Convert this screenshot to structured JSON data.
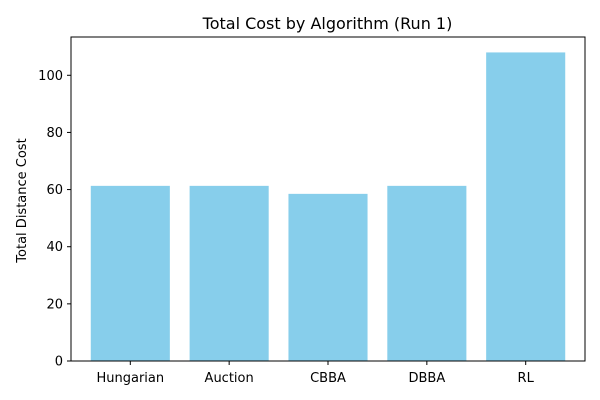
{
  "chart_data": {
    "type": "bar",
    "title": "Total Cost by Algorithm (Run 1)",
    "xlabel": "",
    "ylabel": "Total Distance Cost",
    "categories": [
      "Hungarian",
      "Auction",
      "CBBA",
      "DBBA",
      "RL"
    ],
    "values": [
      61.3,
      61.3,
      58.5,
      61.3,
      108.0
    ],
    "ylim": [
      0,
      113.4
    ],
    "yticks": [
      0,
      20,
      40,
      60,
      80,
      100
    ],
    "bar_color": "#87ceeb",
    "grid": false,
    "legend": "none"
  }
}
